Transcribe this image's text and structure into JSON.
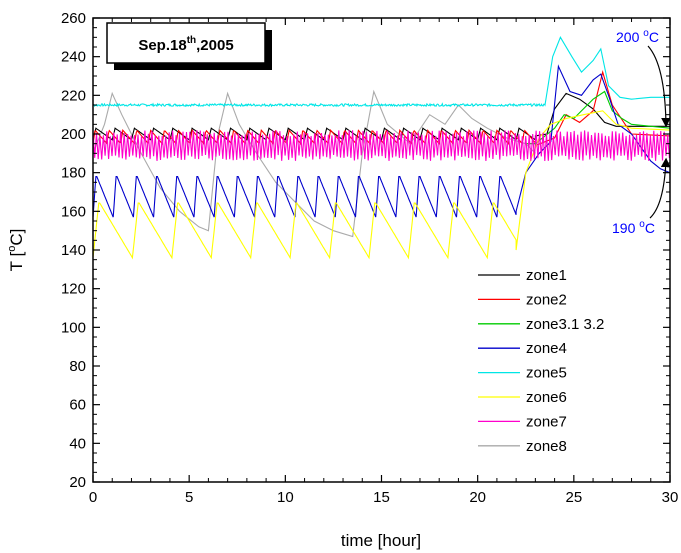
{
  "chart_data": {
    "type": "line",
    "title": "",
    "date_box": {
      "main": "Sep.18",
      "sup": "th",
      "tail": ",2005"
    },
    "xlabel": "time [hour]",
    "ylabel": {
      "pre": "T [",
      "sup": "o",
      "post": "C]"
    },
    "xlim": [
      0,
      30
    ],
    "ylim": [
      20,
      260
    ],
    "xticks": [
      "0",
      "5",
      "10",
      "15",
      "20",
      "25",
      "30"
    ],
    "yticks": [
      "20",
      "40",
      "60",
      "80",
      "100",
      "120",
      "140",
      "160",
      "180",
      "200",
      "220",
      "240",
      "260"
    ],
    "grid": false,
    "legend_position": "lower-right",
    "annotations": [
      {
        "num": "200 ",
        "sup": "o",
        "unit": "C",
        "color": "#0000ff"
      },
      {
        "num": "190 ",
        "sup": "o",
        "unit": "C",
        "color": "#0000ff"
      }
    ],
    "series": [
      {
        "name": "zone1",
        "color": "#000000",
        "pattern": {
          "type": "saw",
          "base": 197,
          "amp": 6,
          "period": 1.0,
          "start": 0,
          "end": 23.0
        },
        "tail": [
          [
            23.0,
            199
          ],
          [
            23.6,
            200
          ],
          [
            24.0,
            213
          ],
          [
            24.6,
            221
          ],
          [
            25.3,
            218
          ],
          [
            26.0,
            213
          ],
          [
            26.6,
            206
          ],
          [
            27.2,
            204
          ],
          [
            28.0,
            204
          ],
          [
            29.0,
            204
          ],
          [
            30.0,
            204
          ]
        ]
      },
      {
        "name": "zone2",
        "color": "#ff0000",
        "pattern": {
          "type": "saw",
          "base": 195,
          "amp": 7,
          "period": 0.72,
          "start": 0,
          "end": 23.0
        },
        "tail": [
          [
            23.0,
            194
          ],
          [
            24.0,
            198
          ],
          [
            24.6,
            210
          ],
          [
            25.3,
            206
          ],
          [
            26.0,
            212
          ],
          [
            26.5,
            232
          ],
          [
            27.0,
            215
          ],
          [
            28.0,
            200
          ],
          [
            30.0,
            199
          ]
        ]
      },
      {
        "name": "zone3.1 3.2",
        "color": "#00cc00",
        "pattern": {
          "type": "flat",
          "base": 195,
          "amp": 0,
          "period": 1.0,
          "start": 22.5,
          "end": 23.0
        },
        "tail": [
          [
            23.0,
            195
          ],
          [
            24.0,
            203
          ],
          [
            24.5,
            210
          ],
          [
            25.0,
            208
          ],
          [
            26.0,
            218
          ],
          [
            26.6,
            222
          ],
          [
            27.0,
            212
          ],
          [
            27.5,
            208
          ],
          [
            28.0,
            205
          ],
          [
            30.0,
            203
          ]
        ]
      },
      {
        "name": "zone4",
        "color": "#0000cc",
        "pattern": {
          "type": "saw",
          "base": 157,
          "amp": 22,
          "period": 1.05,
          "start": 0,
          "end": 22.0
        },
        "tail": [
          [
            22.0,
            160
          ],
          [
            22.5,
            180
          ],
          [
            23.2,
            190
          ],
          [
            23.8,
            196
          ],
          [
            24.2,
            235
          ],
          [
            24.8,
            222
          ],
          [
            25.4,
            220
          ],
          [
            26.0,
            228
          ],
          [
            26.4,
            231
          ],
          [
            26.8,
            220
          ],
          [
            27.3,
            205
          ],
          [
            28.0,
            200
          ],
          [
            28.5,
            193
          ],
          [
            29.0,
            186
          ],
          [
            29.5,
            182
          ],
          [
            30.0,
            180
          ]
        ]
      },
      {
        "name": "zone5",
        "color": "#00e6e6",
        "pattern": {
          "type": "flat",
          "base": 215,
          "amp": 0.6,
          "period": 0.4,
          "start": 0,
          "end": 23.5
        },
        "tail": [
          [
            23.5,
            215
          ],
          [
            23.9,
            240
          ],
          [
            24.3,
            250
          ],
          [
            24.9,
            240
          ],
          [
            25.4,
            232
          ],
          [
            26.0,
            238
          ],
          [
            26.4,
            244
          ],
          [
            26.8,
            225
          ],
          [
            27.4,
            219
          ],
          [
            28.0,
            218
          ],
          [
            29.0,
            219
          ],
          [
            30.0,
            219
          ]
        ]
      },
      {
        "name": "zone6",
        "color": "#ffff00",
        "pattern": {
          "type": "saw",
          "base": 136,
          "amp": 29,
          "period": 2.05,
          "start": 0,
          "end": 22.0
        },
        "tail": [
          [
            22.0,
            140
          ],
          [
            22.5,
            180
          ],
          [
            23.2,
            198
          ],
          [
            23.8,
            205
          ],
          [
            24.6,
            208
          ],
          [
            25.5,
            210
          ],
          [
            26.5,
            212
          ],
          [
            27.2,
            205
          ],
          [
            28.0,
            203
          ],
          [
            30.0,
            202
          ]
        ]
      },
      {
        "name": "zone7",
        "color": "#ff00cc",
        "pattern": {
          "type": "osc",
          "base": 194,
          "amp": 8,
          "period": 0.18,
          "start": 0,
          "end": 30.0
        },
        "tail": []
      },
      {
        "name": "zone8",
        "color": "#aaaaaa",
        "pattern": {
          "type": "flat",
          "base": 0,
          "amp": 0,
          "period": 1.0,
          "start": 0,
          "end": 0
        },
        "tail": [
          [
            0.0,
            190
          ],
          [
            0.6,
            205
          ],
          [
            1.0,
            221
          ],
          [
            1.5,
            210
          ],
          [
            2.5,
            190
          ],
          [
            3.5,
            172
          ],
          [
            4.5,
            160
          ],
          [
            5.5,
            152
          ],
          [
            6.0,
            150
          ],
          [
            6.5,
            200
          ],
          [
            7.0,
            221
          ],
          [
            7.6,
            205
          ],
          [
            8.5,
            190
          ],
          [
            9.5,
            175
          ],
          [
            10.5,
            165
          ],
          [
            11.5,
            155
          ],
          [
            12.5,
            150
          ],
          [
            13.5,
            147
          ],
          [
            14.0,
            190
          ],
          [
            14.6,
            222
          ],
          [
            15.3,
            205
          ],
          [
            16.5,
            195
          ],
          [
            17.5,
            210
          ],
          [
            18.3,
            205
          ],
          [
            19.0,
            215
          ],
          [
            19.7,
            208
          ],
          [
            20.5,
            203
          ],
          [
            21.5,
            198
          ],
          [
            22.5,
            195
          ],
          [
            23.0,
            190
          ]
        ]
      }
    ]
  }
}
